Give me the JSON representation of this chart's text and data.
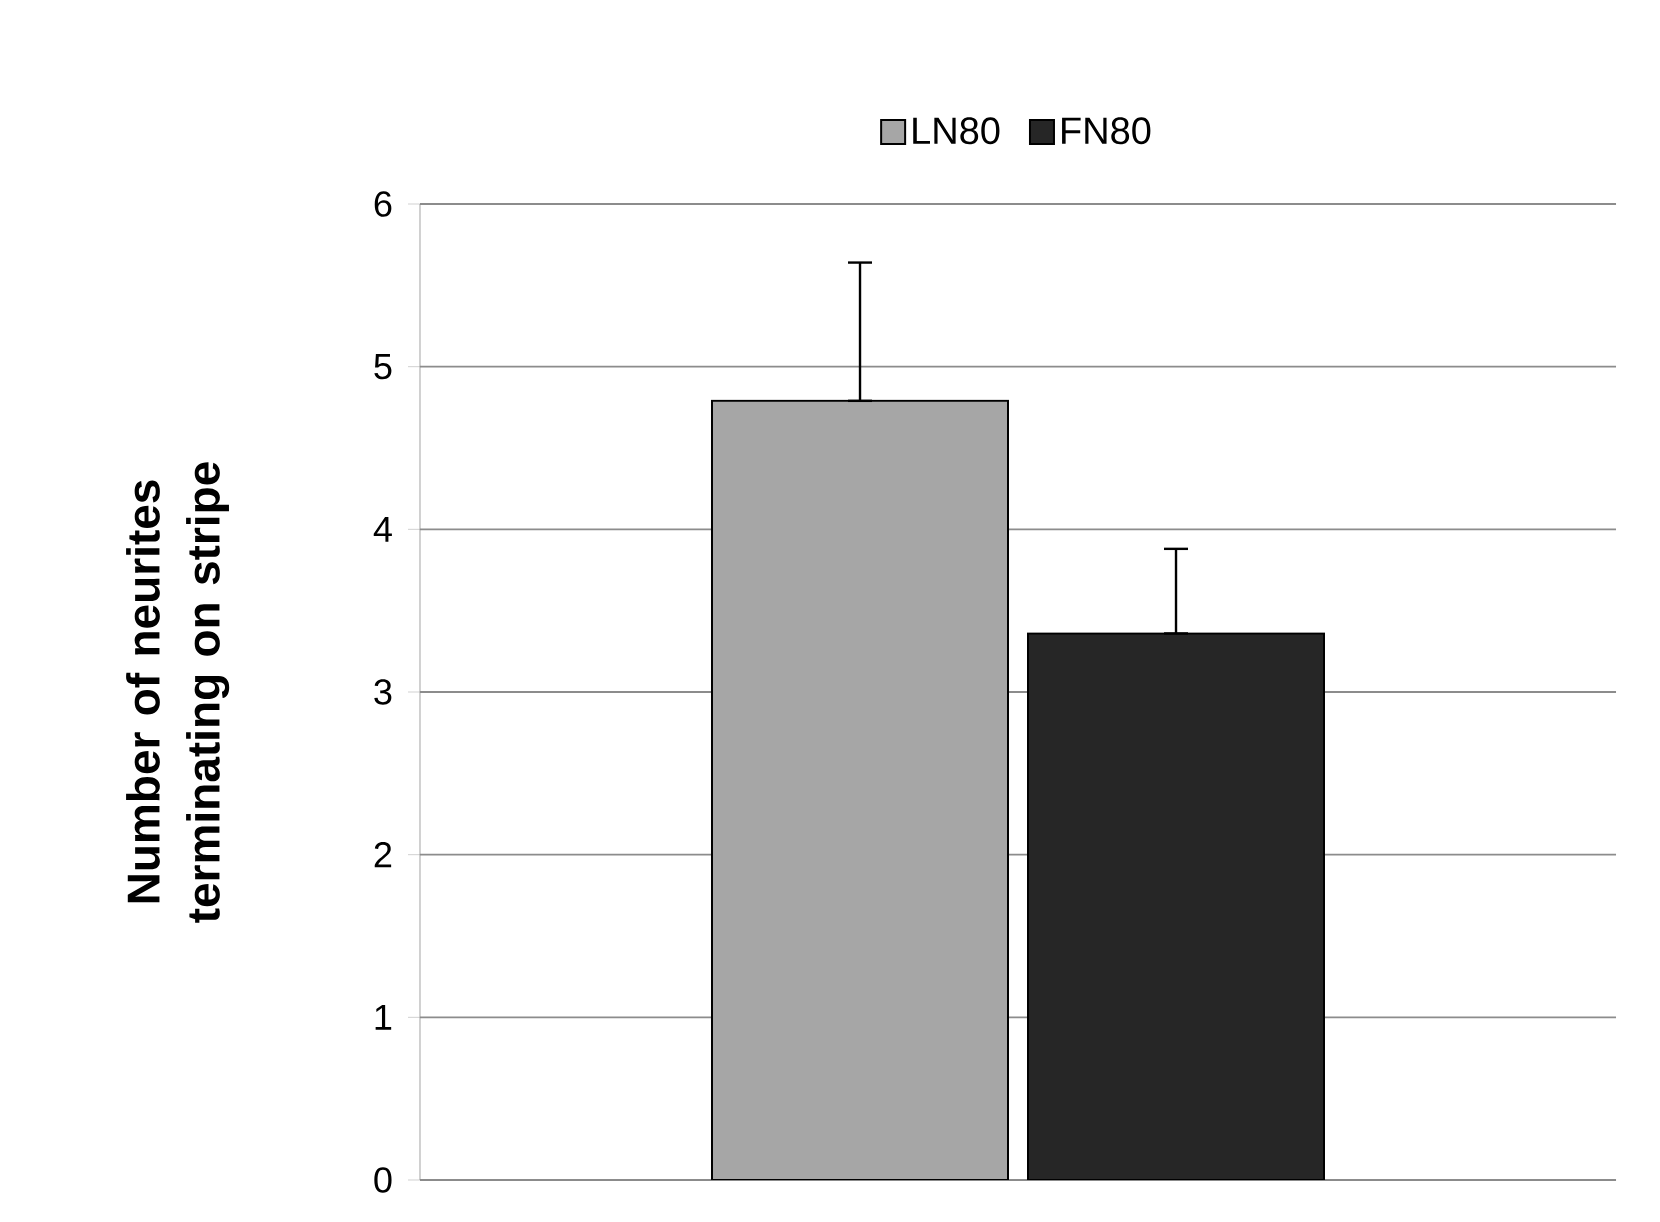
{
  "chart_data": {
    "type": "bar",
    "ylabel": "Number of neurites terminating on stripe",
    "categories": [
      null
    ],
    "series": [
      {
        "name": "LN80",
        "color": "#a6a6a6",
        "values": [
          4.79
        ],
        "errors": [
          [
            4.79,
            5.64
          ]
        ]
      },
      {
        "name": "FN80",
        "color": "#262626",
        "values": [
          3.36
        ],
        "errors": [
          [
            3.36,
            3.88
          ]
        ]
      }
    ],
    "ylim": [
      0,
      6
    ],
    "yticks": [
      0,
      1,
      2,
      3,
      4,
      5,
      6
    ],
    "grid": "y",
    "legend": "top"
  }
}
